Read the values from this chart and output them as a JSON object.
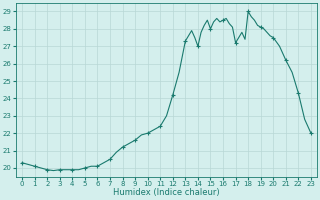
{
  "xlabel": "Humidex (Indice chaleur)",
  "x_values": [
    0,
    0.5,
    1,
    1.5,
    2,
    2.5,
    3,
    3.5,
    4,
    4.5,
    5,
    5.5,
    6,
    6.5,
    7,
    7.5,
    8,
    8.5,
    9,
    9.5,
    10,
    10.5,
    11,
    11.5,
    12,
    12.5,
    13,
    13.25,
    13.5,
    13.75,
    14,
    14.25,
    14.5,
    14.75,
    15,
    15.25,
    15.5,
    15.75,
    16,
    16.25,
    16.5,
    16.75,
    17,
    17.25,
    17.5,
    17.75,
    18,
    18.25,
    18.5,
    18.75,
    19,
    19.25,
    19.5,
    19.75,
    20,
    20.5,
    21,
    21.5,
    22,
    22.5,
    23
  ],
  "y_values": [
    20.3,
    20.2,
    20.1,
    20.0,
    19.9,
    19.85,
    19.9,
    19.9,
    19.9,
    19.9,
    20.0,
    20.1,
    20.1,
    20.3,
    20.5,
    20.9,
    21.2,
    21.4,
    21.6,
    21.9,
    22.0,
    22.2,
    22.4,
    23.0,
    24.2,
    25.5,
    27.3,
    27.6,
    27.9,
    27.5,
    27.0,
    27.8,
    28.2,
    28.5,
    28.0,
    28.4,
    28.6,
    28.4,
    28.5,
    28.6,
    28.3,
    28.1,
    27.2,
    27.5,
    27.8,
    27.4,
    29.0,
    28.7,
    28.5,
    28.2,
    28.1,
    28.0,
    27.8,
    27.6,
    27.5,
    27.0,
    26.2,
    25.5,
    24.3,
    22.8,
    22.0
  ],
  "marker_x": [
    0,
    1,
    2,
    3,
    4,
    5,
    6,
    7,
    8,
    9,
    10,
    11,
    12,
    13,
    14,
    15,
    16,
    17,
    18,
    19,
    20,
    21,
    22,
    23
  ],
  "marker_y": [
    20.3,
    20.1,
    19.9,
    19.9,
    19.9,
    20.0,
    20.1,
    20.5,
    21.2,
    21.6,
    22.0,
    22.4,
    24.2,
    27.3,
    27.0,
    28.0,
    28.5,
    27.2,
    29.0,
    28.1,
    27.5,
    26.2,
    24.3,
    22.0
  ],
  "ylim": [
    19.5,
    29.5
  ],
  "xlim": [
    -0.5,
    23.5
  ],
  "yticks": [
    20,
    21,
    22,
    23,
    24,
    25,
    26,
    27,
    28,
    29
  ],
  "xticks": [
    0,
    1,
    2,
    3,
    4,
    5,
    6,
    7,
    8,
    9,
    10,
    11,
    12,
    13,
    14,
    15,
    16,
    17,
    18,
    19,
    20,
    21,
    22,
    23
  ],
  "line_color": "#1a7a6e",
  "marker": "+",
  "bg_color": "#d4efed",
  "grid_color": "#b8d8d5",
  "axis_color": "#1a7a6e",
  "tick_fontsize": 5.0,
  "xlabel_fontsize": 6.0
}
